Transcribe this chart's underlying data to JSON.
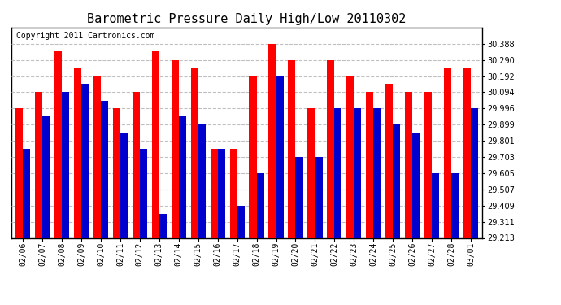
{
  "title": "Barometric Pressure Daily High/Low 20110302",
  "copyright": "Copyright 2011 Cartronics.com",
  "dates": [
    "02/06",
    "02/07",
    "02/08",
    "02/09",
    "02/10",
    "02/11",
    "02/12",
    "02/13",
    "02/14",
    "02/15",
    "02/16",
    "02/17",
    "02/18",
    "02/19",
    "02/20",
    "02/21",
    "02/22",
    "02/23",
    "02/24",
    "02/25",
    "02/26",
    "02/27",
    "02/28",
    "03/01"
  ],
  "highs": [
    29.996,
    30.094,
    30.34,
    30.241,
    30.192,
    29.996,
    30.094,
    30.34,
    30.29,
    30.241,
    29.752,
    29.752,
    30.192,
    30.388,
    30.29,
    29.996,
    30.29,
    30.192,
    30.094,
    30.143,
    30.094,
    30.094,
    30.241,
    30.241
  ],
  "lows": [
    29.752,
    29.948,
    30.094,
    30.143,
    30.044,
    29.85,
    29.752,
    29.36,
    29.948,
    29.899,
    29.752,
    29.409,
    29.605,
    30.192,
    29.703,
    29.703,
    29.996,
    29.996,
    29.996,
    29.899,
    29.85,
    29.605,
    29.605,
    29.996
  ],
  "high_color": "#ff0000",
  "low_color": "#0000cc",
  "background_color": "#ffffff",
  "grid_color": "#c0c0c0",
  "ymin": 29.213,
  "ymax": 30.486,
  "yticks": [
    29.213,
    29.311,
    29.409,
    29.507,
    29.605,
    29.703,
    29.801,
    29.899,
    29.996,
    30.094,
    30.192,
    30.29,
    30.388
  ],
  "title_fontsize": 11,
  "copyright_fontsize": 7,
  "tick_fontsize": 7,
  "ytick_fontsize": 7
}
